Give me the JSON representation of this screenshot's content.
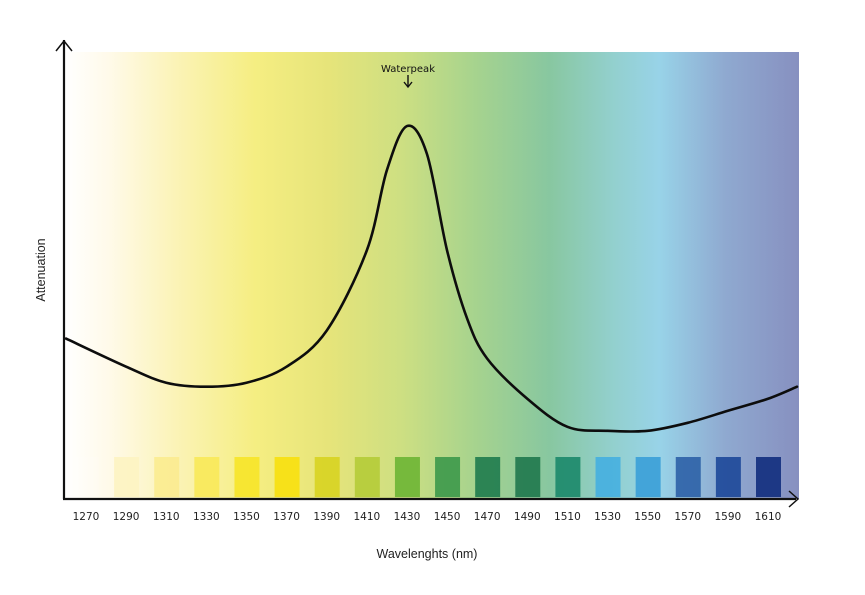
{
  "chart_data": {
    "type": "line",
    "title": "",
    "xlabel": "Wavelenghts (nm)",
    "ylabel": "Attenuation",
    "x_ticks": [
      1270,
      1290,
      1310,
      1330,
      1350,
      1370,
      1390,
      1410,
      1430,
      1450,
      1470,
      1490,
      1510,
      1530,
      1550,
      1570,
      1590,
      1610
    ],
    "xlim": [
      1260,
      1625
    ],
    "ylim": [
      0,
      1
    ],
    "grid": false,
    "legend": null,
    "series": [
      {
        "name": "Attenuation",
        "x": [
          1260,
          1290,
          1310,
          1330,
          1350,
          1370,
          1390,
          1410,
          1420,
          1430,
          1440,
          1450,
          1460,
          1470,
          1490,
          1510,
          1530,
          1550,
          1570,
          1590,
          1610,
          1625
        ],
        "y": [
          0.4,
          0.33,
          0.29,
          0.28,
          0.29,
          0.33,
          0.42,
          0.62,
          0.82,
          0.93,
          0.86,
          0.62,
          0.45,
          0.35,
          0.25,
          0.18,
          0.17,
          0.17,
          0.19,
          0.22,
          0.25,
          0.28
        ]
      }
    ],
    "annotations": [
      {
        "text": "Waterpeak",
        "x": 1430,
        "arrow": "down"
      }
    ],
    "background": "spectral color gradient from white/yellow (1270) through green (1450) to light blue (1550) and slate blue (1620)",
    "swatches": [
      {
        "wavelength": 1270,
        "color": "#ffffff"
      },
      {
        "wavelength": 1290,
        "color": "#fdf3c2"
      },
      {
        "wavelength": 1310,
        "color": "#fbec90"
      },
      {
        "wavelength": 1330,
        "color": "#f8e95a"
      },
      {
        "wavelength": 1350,
        "color": "#f6e52a"
      },
      {
        "wavelength": 1370,
        "color": "#f7df10"
      },
      {
        "wavelength": 1390,
        "color": "#d8d423"
      },
      {
        "wavelength": 1410,
        "color": "#b5cc3a"
      },
      {
        "wavelength": 1430,
        "color": "#6fb536"
      },
      {
        "wavelength": 1450,
        "color": "#3f9a4c"
      },
      {
        "wavelength": 1470,
        "color": "#227d4f"
      },
      {
        "wavelength": 1490,
        "color": "#227a4f"
      },
      {
        "wavelength": 1510,
        "color": "#1d8a6c"
      },
      {
        "wavelength": 1530,
        "color": "#47b0df"
      },
      {
        "wavelength": 1550,
        "color": "#3ca0d8"
      },
      {
        "wavelength": 1570,
        "color": "#2f63a8"
      },
      {
        "wavelength": 1590,
        "color": "#1f4a9a"
      },
      {
        "wavelength": 1610,
        "color": "#13307f"
      }
    ]
  },
  "labels": {
    "xlabel": "Wavelenghts (nm)",
    "ylabel": "Attenuation",
    "annotation": "Waterpeak"
  },
  "colors": {
    "axis": "#111111",
    "curve": "#0d0d0d"
  }
}
